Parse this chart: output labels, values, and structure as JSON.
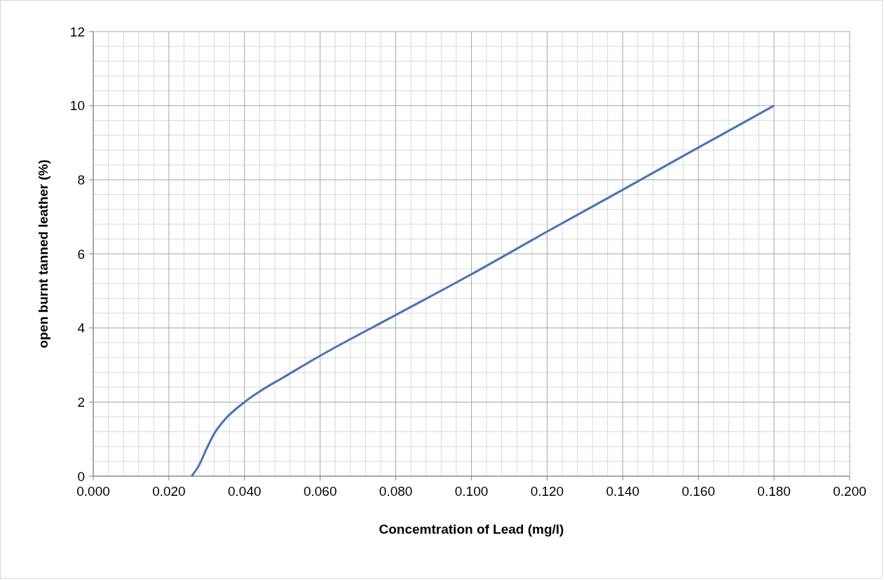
{
  "chart_data": {
    "type": "line",
    "xlabel": "Concemtration of Lead (mg/l)",
    "ylabel": "open burnt tanned leather (%)",
    "series": [
      {
        "color": "#4472c4",
        "x": [
          0.026,
          0.028,
          0.03,
          0.032,
          0.035,
          0.04,
          0.045,
          0.05,
          0.06,
          0.08,
          0.1,
          0.12,
          0.14,
          0.16,
          0.18
        ],
        "values": [
          0,
          0.3,
          0.75,
          1.15,
          1.55,
          2,
          2.35,
          2.65,
          3.25,
          4.35,
          5.45,
          6.6,
          7.73,
          8.87,
          10
        ]
      }
    ],
    "xlim": [
      0,
      0.2
    ],
    "ylim": [
      0,
      12
    ],
    "xticks": [
      {
        "value": 0,
        "label": "0.000"
      },
      {
        "value": 0.02,
        "label": "0.020"
      },
      {
        "value": 0.04,
        "label": "0.040"
      },
      {
        "value": 0.06,
        "label": "0.060"
      },
      {
        "value": 0.08,
        "label": "0.080"
      },
      {
        "value": 0.1,
        "label": "0.100"
      },
      {
        "value": 0.12,
        "label": "0.120"
      },
      {
        "value": 0.14,
        "label": "0.140"
      },
      {
        "value": 0.16,
        "label": "0.160"
      },
      {
        "value": 0.18,
        "label": "0.180"
      },
      {
        "value": 0.2,
        "label": "0.200"
      }
    ],
    "yticks": [
      0,
      2,
      4,
      6,
      8,
      10,
      12
    ],
    "grid": true,
    "marker": "none",
    "line_style": "solid"
  }
}
